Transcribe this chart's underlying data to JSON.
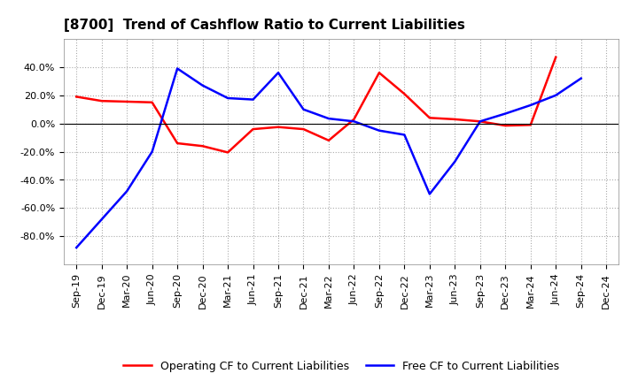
{
  "title": "[8700]  Trend of Cashflow Ratio to Current Liabilities",
  "x_labels": [
    "Sep-19",
    "Dec-19",
    "Mar-20",
    "Jun-20",
    "Sep-20",
    "Dec-20",
    "Mar-21",
    "Jun-21",
    "Sep-21",
    "Dec-21",
    "Mar-22",
    "Jun-22",
    "Sep-22",
    "Dec-22",
    "Mar-23",
    "Jun-23",
    "Sep-23",
    "Dec-23",
    "Mar-24",
    "Jun-24",
    "Sep-24",
    "Dec-24"
  ],
  "operating_cf": [
    19.0,
    16.0,
    15.5,
    15.0,
    -14.0,
    -16.0,
    -20.5,
    -4.0,
    -2.5,
    -4.0,
    -12.0,
    3.0,
    36.0,
    21.0,
    4.0,
    3.0,
    1.5,
    -1.5,
    -1.0,
    47.0,
    null,
    null
  ],
  "free_cf": [
    -88.0,
    -68.0,
    -48.0,
    -20.0,
    39.0,
    27.0,
    18.0,
    17.0,
    36.0,
    10.0,
    3.5,
    1.5,
    -5.0,
    -8.0,
    -50.0,
    -27.0,
    1.5,
    7.0,
    13.0,
    20.0,
    32.0,
    null
  ],
  "operating_color": "#ff0000",
  "free_color": "#0000ff",
  "ylim": [
    -100,
    60
  ],
  "yticks": [
    -80.0,
    -60.0,
    -40.0,
    -20.0,
    0.0,
    20.0,
    40.0
  ],
  "background_color": "#ffffff",
  "grid_color": "#aaaaaa",
  "legend_op": "Operating CF to Current Liabilities",
  "legend_free": "Free CF to Current Liabilities",
  "linewidth": 1.8,
  "title_fontsize": 11,
  "tick_fontsize": 8,
  "legend_fontsize": 9
}
